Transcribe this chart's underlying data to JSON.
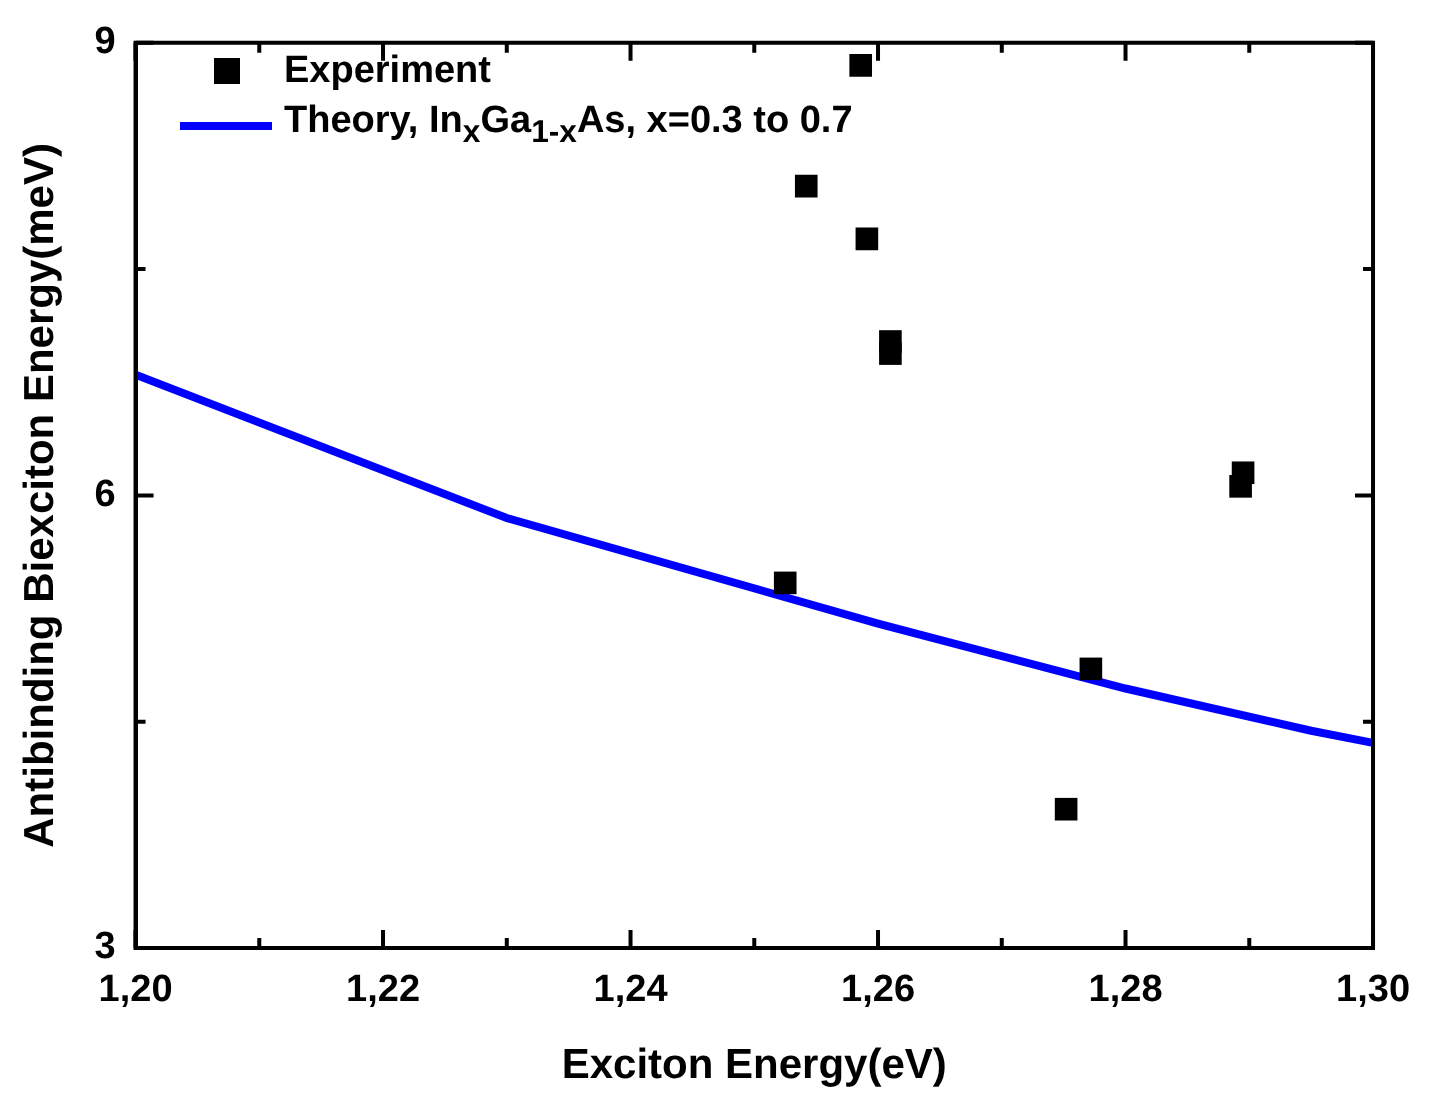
{
  "chart_data": {
    "type": "scatter",
    "xlabel": "Exciton Energy(eV)",
    "ylabel": "Antibinding Biexciton Energy(meV)",
    "xlim": [
      1.2,
      1.3
    ],
    "xticks": [
      {
        "value": 1.2,
        "label": "1,20"
      },
      {
        "value": 1.21,
        "label": null
      },
      {
        "value": 1.22,
        "label": "1,22"
      },
      {
        "value": 1.23,
        "label": null
      },
      {
        "value": 1.24,
        "label": "1,24"
      },
      {
        "value": 1.25,
        "label": null
      },
      {
        "value": 1.26,
        "label": "1,26"
      },
      {
        "value": 1.27,
        "label": null
      },
      {
        "value": 1.28,
        "label": "1,28"
      },
      {
        "value": 1.29,
        "label": null
      },
      {
        "value": 1.3,
        "label": "1,30"
      }
    ],
    "ylim": [
      3,
      9
    ],
    "yticks": [
      3,
      {
        "value": 4.5,
        "label": null
      },
      6,
      {
        "value": 7.5,
        "label": null
      },
      9
    ],
    "grid": false,
    "legend": "top left",
    "series": [
      {
        "name": "Experiment",
        "type": "scatter",
        "marker": "square",
        "color": "#000000",
        "x": [
          1.2586,
          1.2542,
          1.2591,
          1.261,
          1.261,
          1.2895,
          1.2893,
          1.2525,
          1.2772,
          1.2752
        ],
        "values": [
          8.85,
          8.05,
          7.7,
          7.02,
          6.94,
          6.15,
          6.06,
          5.42,
          4.85,
          3.92
        ]
      },
      {
        "name": "Theory, In$_{x}$Ga$_{1-x}$As, x=0.3 to 0.7",
        "type": "line",
        "marker": "none",
        "line_style": "solid",
        "color": "#0000ff",
        "x": [
          1.2,
          1.23,
          1.26,
          1.28,
          1.295,
          1.3
        ],
        "values": [
          6.8,
          5.85,
          5.15,
          4.72,
          4.44,
          4.36
        ]
      }
    ]
  }
}
